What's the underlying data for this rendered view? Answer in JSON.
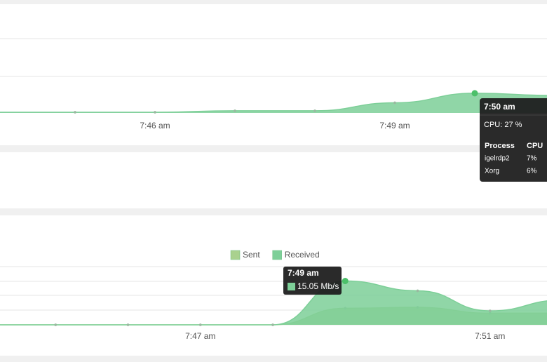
{
  "chart_data": [
    {
      "type": "area",
      "categories": [
        null,
        null,
        "7:46 am",
        null,
        null,
        "7:49 am",
        null,
        null
      ],
      "series": [
        {
          "name": "CPU",
          "color": "#7dcf98",
          "values": [
            1,
            1,
            1,
            3,
            3,
            14,
            27,
            24
          ]
        }
      ],
      "ylim": [
        0,
        150
      ],
      "tooltip": {
        "title": "7:50 am",
        "summary": "CPU: 27 %",
        "header": [
          "Process",
          "CPU"
        ],
        "rows": [
          [
            "igelrdp2",
            "7%"
          ],
          [
            "Xorg",
            "6%"
          ]
        ]
      }
    },
    {
      "type": "area",
      "categories": [
        null,
        null,
        null,
        "7:47 am",
        null,
        null,
        null,
        "7:51 am",
        null
      ],
      "series": [
        {
          "name": "Sent",
          "color": "#a9d18e",
          "values": [
            0,
            0,
            0,
            0,
            0,
            5.7,
            6,
            4,
            4
          ]
        },
        {
          "name": "Received",
          "color": "#7dcf98",
          "values": [
            0,
            0,
            0,
            0,
            0,
            15.05,
            11.7,
            4.8,
            8.5
          ]
        }
      ],
      "ylim": [
        0,
        20
      ],
      "tooltip": {
        "title": "7:49 am",
        "summary": "15.05 Mb/s"
      }
    }
  ]
}
